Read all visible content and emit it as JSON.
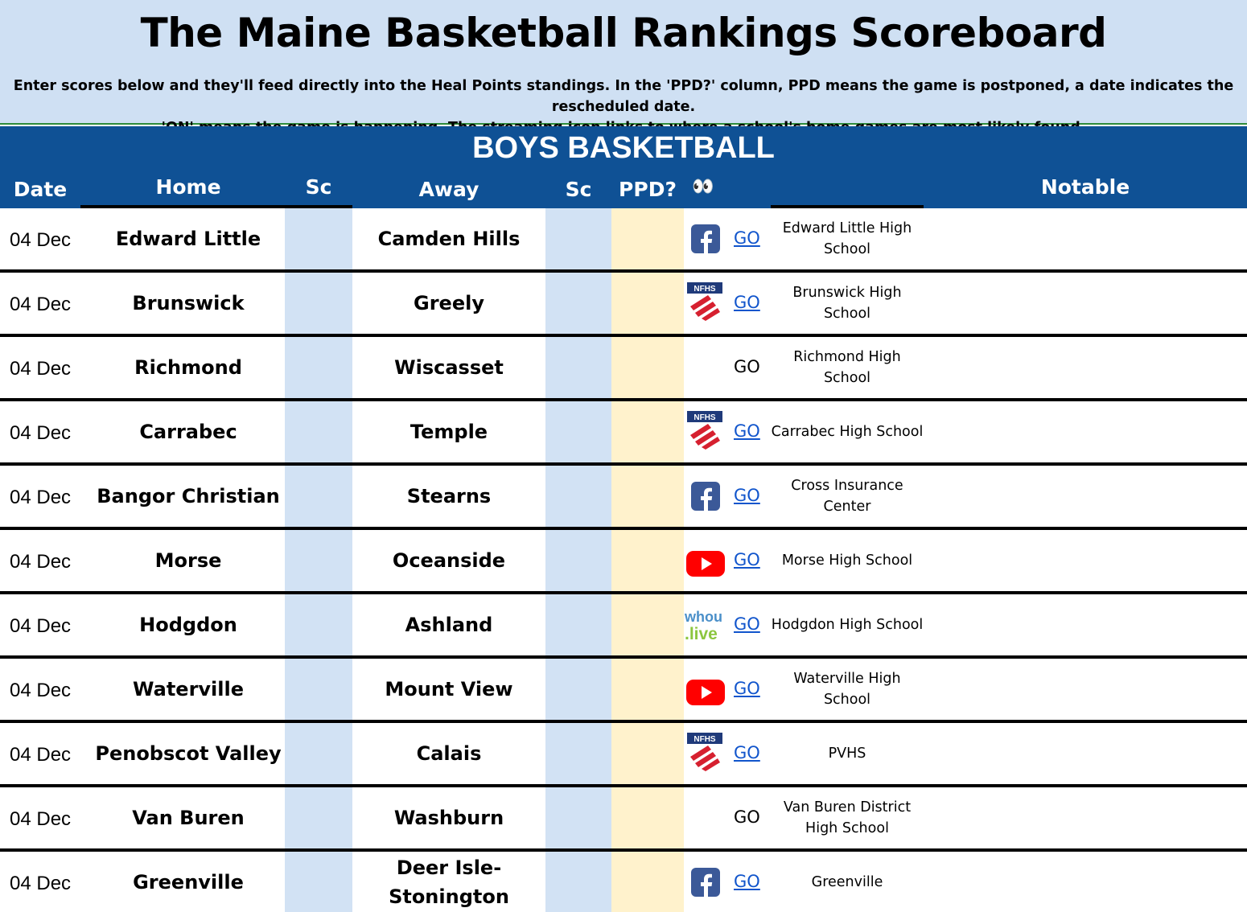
{
  "header": {
    "title": "The Maine Basketball Rankings Scoreboard",
    "subtitle_line1": "Enter scores below and they'll feed directly into the Heal Points standings. In the 'PPD?' column,  PPD means the game is postponed, a date indicates the rescheduled date.",
    "subtitle_line2": "'ON' means the game is happening. The streaming icon links to where a school's home games are most likely found."
  },
  "section": {
    "title": "BOYS BASKETBALL"
  },
  "columns": {
    "date": "Date",
    "home": "Home",
    "home_score": "Sc",
    "away": "Away",
    "away_score": "Sc",
    "ppd": "PPD?",
    "stream": "👀",
    "notable": "Notable"
  },
  "colors": {
    "header_bg": "#cfe0f3",
    "bar_bg": "#0f5195",
    "score_cell_bg": "#d2e2f4",
    "ppd_cell_bg": "#fff2cc",
    "link": "#1155cc"
  },
  "games": [
    {
      "date": "04 Dec",
      "home": "Edward Little",
      "away": "Camden Hills",
      "home_score": "",
      "away_score": "",
      "ppd": "",
      "stream_icon": "facebook-icon",
      "go": "GO",
      "go_link": true,
      "venue": "Edward Little High School",
      "notable": ""
    },
    {
      "date": "04 Dec",
      "home": "Brunswick",
      "away": "Greely",
      "home_score": "",
      "away_score": "",
      "ppd": "",
      "stream_icon": "nfhs-icon",
      "go": "GO",
      "go_link": true,
      "venue": "Brunswick High School",
      "notable": ""
    },
    {
      "date": "04 Dec",
      "home": "Richmond",
      "away": "Wiscasset",
      "home_score": "",
      "away_score": "",
      "ppd": "",
      "stream_icon": "",
      "go": "GO",
      "go_link": false,
      "venue": "Richmond High School",
      "notable": ""
    },
    {
      "date": "04 Dec",
      "home": "Carrabec",
      "away": "Temple",
      "home_score": "",
      "away_score": "",
      "ppd": "",
      "stream_icon": "nfhs-icon",
      "go": "GO",
      "go_link": true,
      "venue": "Carrabec High School",
      "notable": ""
    },
    {
      "date": "04 Dec",
      "home": "Bangor Christian",
      "away": "Stearns",
      "home_score": "",
      "away_score": "",
      "ppd": "",
      "stream_icon": "facebook-icon",
      "go": "GO",
      "go_link": true,
      "venue": "Cross Insurance Center",
      "notable": ""
    },
    {
      "date": "04 Dec",
      "home": "Morse",
      "away": "Oceanside",
      "home_score": "",
      "away_score": "",
      "ppd": "",
      "stream_icon": "youtube-icon",
      "go": "GO",
      "go_link": true,
      "venue": "Morse High School",
      "notable": ""
    },
    {
      "date": "04 Dec",
      "home": "Hodgdon",
      "away": "Ashland",
      "home_score": "",
      "away_score": "",
      "ppd": "",
      "stream_icon": "whoulive-icon",
      "go": "GO",
      "go_link": true,
      "venue": "Hodgdon High School",
      "notable": ""
    },
    {
      "date": "04 Dec",
      "home": "Waterville",
      "away": "Mount View",
      "home_score": "",
      "away_score": "",
      "ppd": "",
      "stream_icon": "youtube-icon",
      "go": "GO",
      "go_link": true,
      "venue": "Waterville High School",
      "notable": ""
    },
    {
      "date": "04 Dec",
      "home": "Penobscot Valley",
      "away": "Calais",
      "home_score": "",
      "away_score": "",
      "ppd": "",
      "stream_icon": "nfhs-icon",
      "go": "GO",
      "go_link": true,
      "venue": "PVHS",
      "notable": ""
    },
    {
      "date": "04 Dec",
      "home": "Van Buren",
      "away": "Washburn",
      "home_score": "",
      "away_score": "",
      "ppd": "",
      "stream_icon": "",
      "go": "GO",
      "go_link": false,
      "venue": "Van Buren District High School",
      "notable": ""
    },
    {
      "date": "04 Dec",
      "home": "Greenville",
      "away": "Deer Isle-Stonington",
      "home_score": "",
      "away_score": "",
      "ppd": "",
      "stream_icon": "facebook-icon",
      "go": "GO",
      "go_link": true,
      "venue": "Greenville",
      "notable": ""
    }
  ]
}
